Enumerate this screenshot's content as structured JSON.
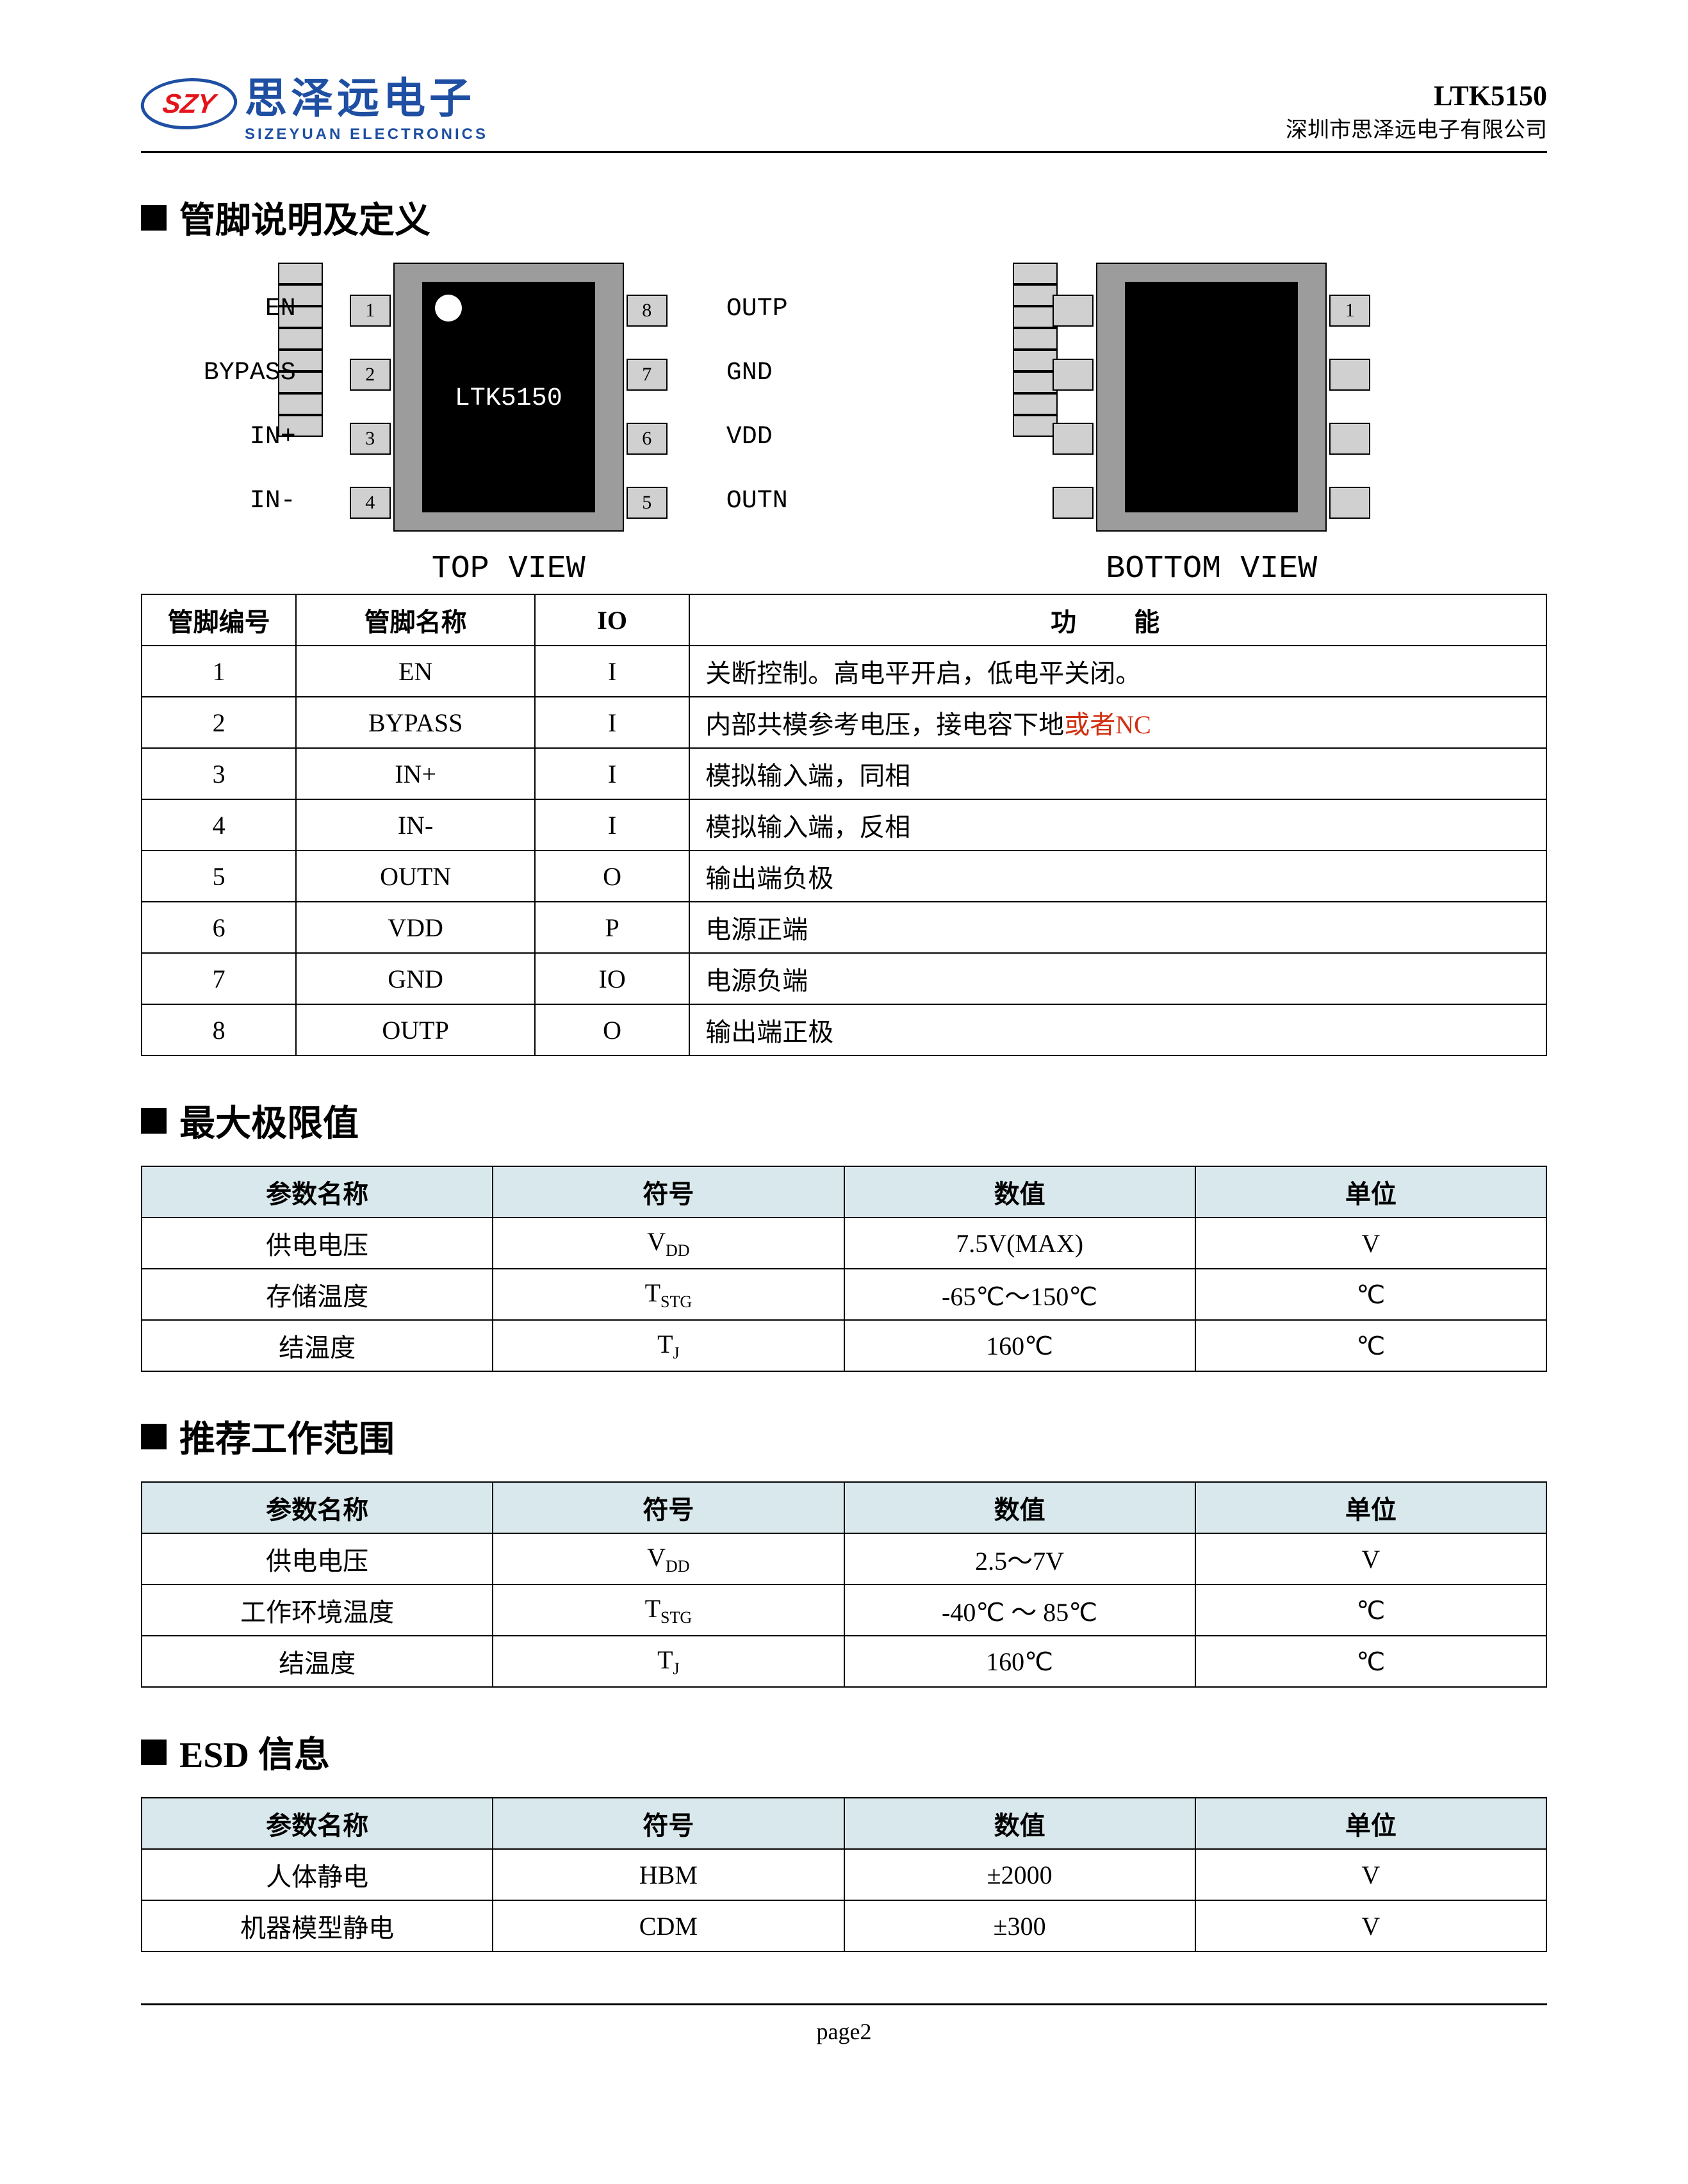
{
  "header": {
    "logo_abbrev": "SZY",
    "logo_cn": "思泽远电子",
    "logo_en": "SIZEYUAN ELECTRONICS",
    "part_number": "LTK5150",
    "company_line": "深圳市思泽远电子有限公司"
  },
  "section_pins": "管脚说明及定义",
  "chip": {
    "part_label": "LTK5150",
    "top_view": "TOP VIEW",
    "bottom_view": "BOTTOM VIEW",
    "left_pins": [
      {
        "num": "1",
        "name": "EN"
      },
      {
        "num": "2",
        "name": "BYPASS"
      },
      {
        "num": "3",
        "name": "IN+"
      },
      {
        "num": "4",
        "name": "IN-"
      }
    ],
    "right_pins": [
      {
        "num": "8",
        "name": "OUTP"
      },
      {
        "num": "7",
        "name": "GND"
      },
      {
        "num": "6",
        "name": "VDD"
      },
      {
        "num": "5",
        "name": "OUTN"
      }
    ],
    "bottom_right_pin": "1",
    "colors": {
      "chip_body": "#9c9c9c",
      "chip_die": "#000000",
      "pin_fill": "#d0d0d0",
      "border": "#000000"
    }
  },
  "pin_table": {
    "headers": [
      "管脚编号",
      "管脚名称",
      "IO",
      "功   能"
    ],
    "rows": [
      {
        "num": "1",
        "name": "EN",
        "io": "I",
        "func": "关断控制。高电平开启，低电平关闭。"
      },
      {
        "num": "2",
        "name": "BYPASS",
        "io": "I",
        "func_pre": "内部共模参考电压，接电容下地",
        "func_red": "或者NC"
      },
      {
        "num": "3",
        "name": "IN+",
        "io": "I",
        "func": "模拟输入端，同相"
      },
      {
        "num": "4",
        "name": "IN-",
        "io": "I",
        "func": "模拟输入端，反相"
      },
      {
        "num": "5",
        "name": "OUTN",
        "io": "O",
        "func": "输出端负极"
      },
      {
        "num": "6",
        "name": "VDD",
        "io": "P",
        "func": "电源正端"
      },
      {
        "num": "7",
        "name": "GND",
        "io": "IO",
        "func": "电源负端"
      },
      {
        "num": "8",
        "name": "OUTP",
        "io": "O",
        "func": "输出端正极"
      }
    ]
  },
  "section_max": "最大极限值",
  "max_table": {
    "headers": [
      "参数名称",
      "符号",
      "数值",
      "单位"
    ],
    "rows": [
      {
        "p": "供电电压",
        "s": "V",
        "sub": "DD",
        "v": "7.5V(MAX)",
        "u": "V"
      },
      {
        "p": "存储温度",
        "s": "T",
        "sub": "STG",
        "v": "-65℃～150℃",
        "u": "℃"
      },
      {
        "p": "结温度",
        "s": "T",
        "sub": "J",
        "v": "160℃",
        "u": "℃"
      }
    ]
  },
  "section_rec": "推荐工作范围",
  "rec_table": {
    "headers": [
      "参数名称",
      "符号",
      "数值",
      "单位"
    ],
    "rows": [
      {
        "p": "供电电压",
        "s": "V",
        "sub": "DD",
        "v": "2.5～7V",
        "u": "V"
      },
      {
        "p": "工作环境温度",
        "s": "T",
        "sub": "STG",
        "v": "-40℃ ～ 85℃",
        "u": "℃"
      },
      {
        "p": "结温度",
        "s": "T",
        "sub": "J",
        "v": "160℃",
        "u": "℃"
      }
    ]
  },
  "section_esd": "ESD 信息",
  "esd_table": {
    "headers": [
      "参数名称",
      "符号",
      "数值",
      "单位"
    ],
    "rows": [
      {
        "p": "人体静电",
        "s": "HBM",
        "v": "±2000",
        "u": "V"
      },
      {
        "p": "机器模型静电",
        "s": "CDM",
        "v": "±300",
        "u": "V"
      }
    ]
  },
  "footer": "page2"
}
